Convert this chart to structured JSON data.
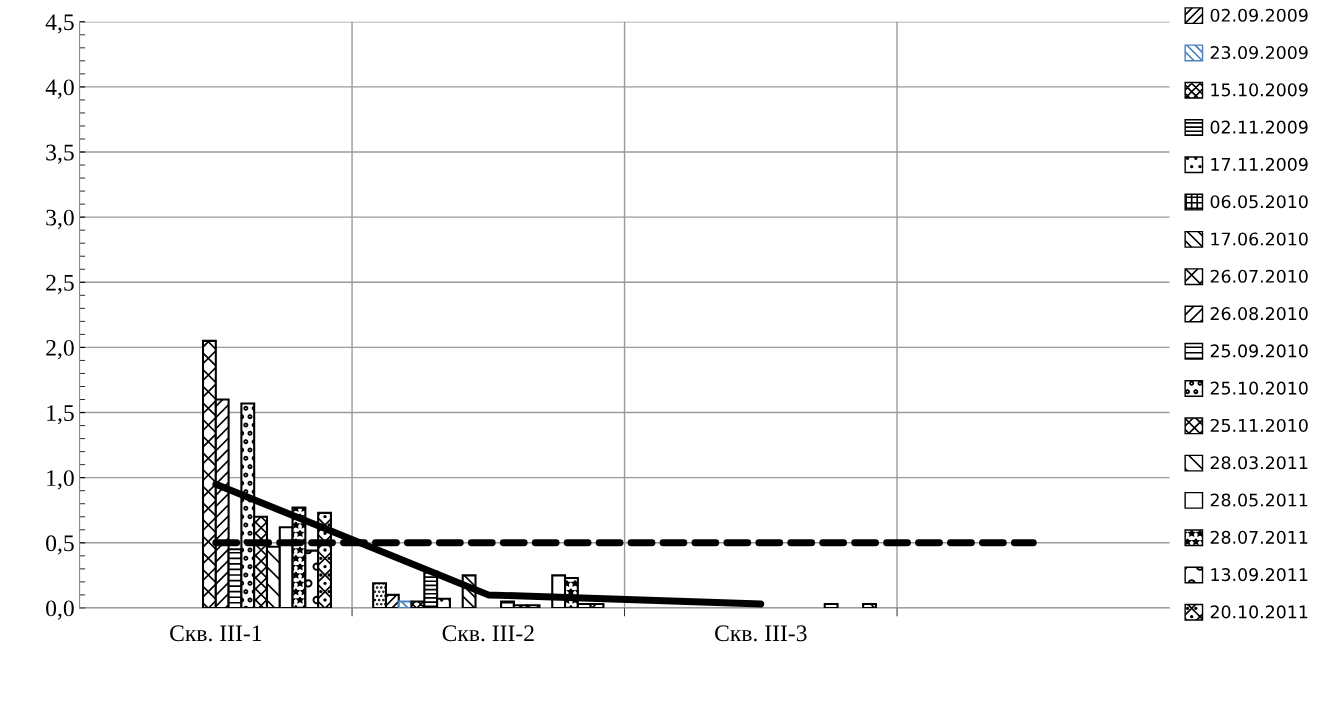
{
  "chart_data": {
    "type": "bar",
    "categories": [
      "Скв. III-1",
      "Скв. III-2",
      "Скв. III-3",
      null
    ],
    "series": [
      {
        "color": "#000000",
        "values": [
          null,
          0.19,
          null,
          null
        ]
      },
      {
        "name": "02.09.2009",
        "color": "#000000",
        "values": [
          null,
          0.1,
          null,
          null
        ]
      },
      {
        "name": "23.09.2009",
        "color": "#4f81bd",
        "values": [
          null,
          0.05,
          null,
          null
        ]
      },
      {
        "name": "15.10.2009",
        "color": "#000000",
        "values": [
          null,
          0.05,
          null,
          null
        ]
      },
      {
        "name": "02.11.2009",
        "color": "#000000",
        "values": [
          null,
          0.28,
          null,
          null
        ]
      },
      {
        "name": "17.11.2009",
        "color": "#000000",
        "values": [
          null,
          0.07,
          null,
          null
        ]
      },
      {
        "name": "06.05.2010",
        "color": "#000000",
        "values": [
          null,
          null,
          null,
          null
        ]
      },
      {
        "name": "17.06.2010",
        "color": "#000000",
        "values": [
          null,
          0.25,
          null,
          null
        ]
      },
      {
        "name": "26.07.2010",
        "color": "#000000",
        "values": [
          2.05,
          null,
          null,
          null
        ]
      },
      {
        "name": "26.08.2010",
        "color": "#000000",
        "values": [
          1.6,
          null,
          null,
          null
        ]
      },
      {
        "name": "25.09.2010",
        "color": "#000000",
        "values": [
          0.45,
          0.05,
          null,
          null
        ]
      },
      {
        "name": "25.10.2010",
        "color": "#000000",
        "values": [
          1.57,
          0.02,
          null,
          null
        ]
      },
      {
        "name": "25.11.2010",
        "color": "#000000",
        "values": [
          0.7,
          0.02,
          null,
          null
        ]
      },
      {
        "name": "28.03.2011",
        "color": "#000000",
        "values": [
          0.47,
          null,
          null,
          null
        ]
      },
      {
        "name": "28.05.2011",
        "color": "#000000",
        "values": [
          0.62,
          0.25,
          0.03,
          null
        ]
      },
      {
        "name": "28.07.2011",
        "color": "#000000",
        "values": [
          0.77,
          0.23,
          null,
          null
        ]
      },
      {
        "name": "13.09.2011",
        "color": "#000000",
        "values": [
          0.44,
          0.03,
          null,
          null
        ]
      },
      {
        "name": "20.10.2011",
        "color": "#000000",
        "values": [
          0.73,
          0.03,
          0.03,
          null
        ]
      },
      {
        "type": "line",
        "color": "#000000",
        "line_style": "solid",
        "values": [
          0.95,
          0.1,
          0.03,
          null
        ]
      },
      {
        "type": "line",
        "color": "#000000",
        "line_style": "dashed",
        "values": [
          0.5,
          0.5,
          0.5,
          0.5
        ]
      }
    ],
    "ylim": [
      0,
      4.5
    ],
    "yticks": [
      {
        "value": 0,
        "label": "0,0"
      },
      {
        "value": 0.5,
        "label": "0,5"
      },
      {
        "value": 1,
        "label": "1,0"
      },
      {
        "value": 1.5,
        "label": "1,5"
      },
      {
        "value": 2,
        "label": "2,0"
      },
      {
        "value": 2.5,
        "label": "2,5"
      },
      {
        "value": 3,
        "label": "3,0"
      },
      {
        "value": 3.5,
        "label": "3,5"
      },
      {
        "value": 4,
        "label": "4,0"
      },
      {
        "value": 4.5,
        "label": "4,5"
      }
    ],
    "grid": true,
    "legend": "right"
  }
}
